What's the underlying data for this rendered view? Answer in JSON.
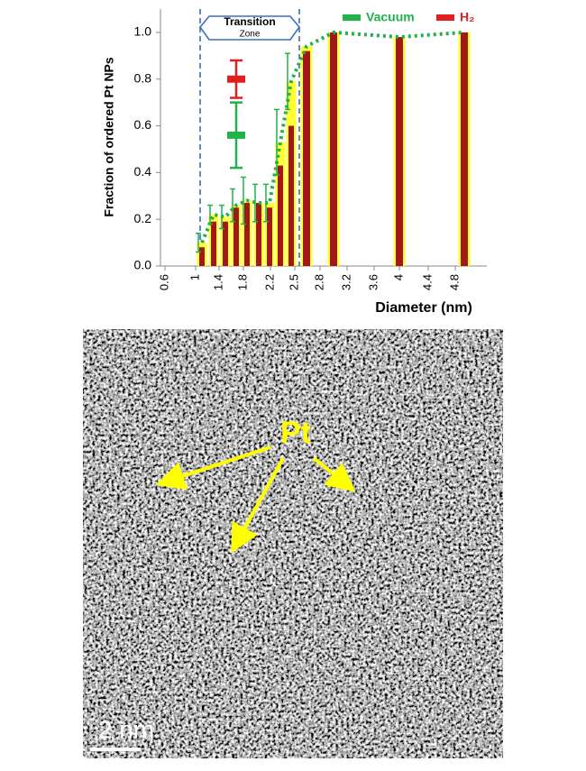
{
  "chart_data": {
    "type": "bar",
    "y_label": "Fraction of ordered Pt NPs",
    "x_label": "Diameter (nm)",
    "zone_label": [
      "Transition",
      "Zone"
    ],
    "x_tick_labels": [
      "0.6",
      "1",
      "1.4",
      "1.8",
      "2.2",
      "2.5",
      "2.8",
      "3.2",
      "3.6",
      "4",
      "4.4",
      "4.8"
    ],
    "categories": [
      null,
      null,
      null,
      null,
      null,
      null,
      null,
      null,
      null,
      null,
      null,
      null,
      null
    ],
    "series": [
      {
        "name": "Vacuum",
        "color": "#22b14c",
        "bar_color": "#ffff33",
        "values": [
          0.1,
          0.22,
          0.21,
          0.26,
          0.28,
          0.27,
          0.27,
          0.53,
          0.79,
          0.94,
          1.0,
          0.98,
          1.0
        ],
        "errors": [
          0.04,
          0.04,
          0.05,
          0.07,
          0.1,
          0.08,
          0.08,
          0.14,
          0.12,
          null,
          null,
          null,
          null
        ]
      },
      {
        "name": "H₂",
        "color": "#e02020",
        "bar_color": "#a01818",
        "values": [
          0.08,
          0.19,
          0.19,
          0.25,
          0.27,
          0.27,
          0.25,
          0.43,
          0.6,
          0.92,
          1.0,
          0.98,
          1.0
        ]
      }
    ],
    "reference_points": [
      {
        "color": "#e02020",
        "value": 0.8,
        "error": 0.08
      },
      {
        "color": "#22b14c",
        "value": 0.56,
        "error": 0.14
      }
    ],
    "ylim": [
      0,
      1.1
    ],
    "yticks": [
      {
        "value": 0,
        "label": "0.0"
      },
      {
        "value": 0.2,
        "label": "0.2"
      },
      {
        "value": 0.4,
        "label": "0.4"
      },
      {
        "value": 0.6,
        "label": "0.6"
      },
      {
        "value": 0.8,
        "label": "0.8"
      },
      {
        "value": 1,
        "label": "1.0"
      }
    ]
  },
  "image": {
    "label": "Pt",
    "scale_bar": "2 nm"
  }
}
